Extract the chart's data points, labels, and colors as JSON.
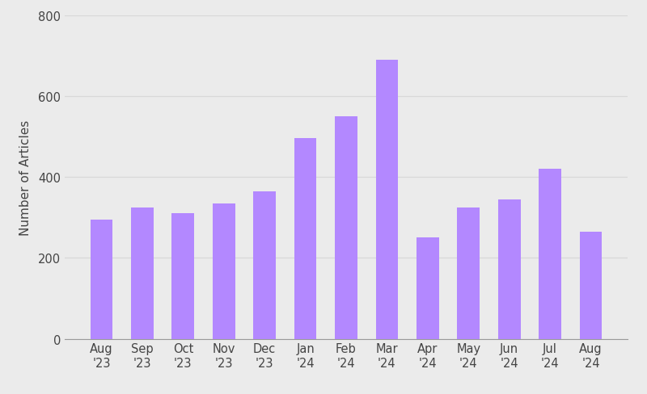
{
  "categories": [
    "Aug\n'23",
    "Sep\n'23",
    "Oct\n'23",
    "Nov\n'23",
    "Dec\n'23",
    "Jan\n'24",
    "Feb\n'24",
    "Mar\n'24",
    "Apr\n'24",
    "May\n'24",
    "Jun\n'24",
    "Jul\n'24",
    "Aug\n'24"
  ],
  "values": [
    295,
    325,
    310,
    335,
    365,
    495,
    550,
    690,
    250,
    325,
    345,
    420,
    265
  ],
  "bar_color": "#b388ff",
  "ylabel": "Number of Articles",
  "ylim": [
    0,
    800
  ],
  "yticks": [
    0,
    200,
    400,
    600,
    800
  ],
  "background_color": "#ebebeb",
  "grid_color": "#d8d8d8",
  "label_color": "#444444",
  "ylabel_fontsize": 11,
  "tick_fontsize": 10.5,
  "bar_width": 0.55
}
